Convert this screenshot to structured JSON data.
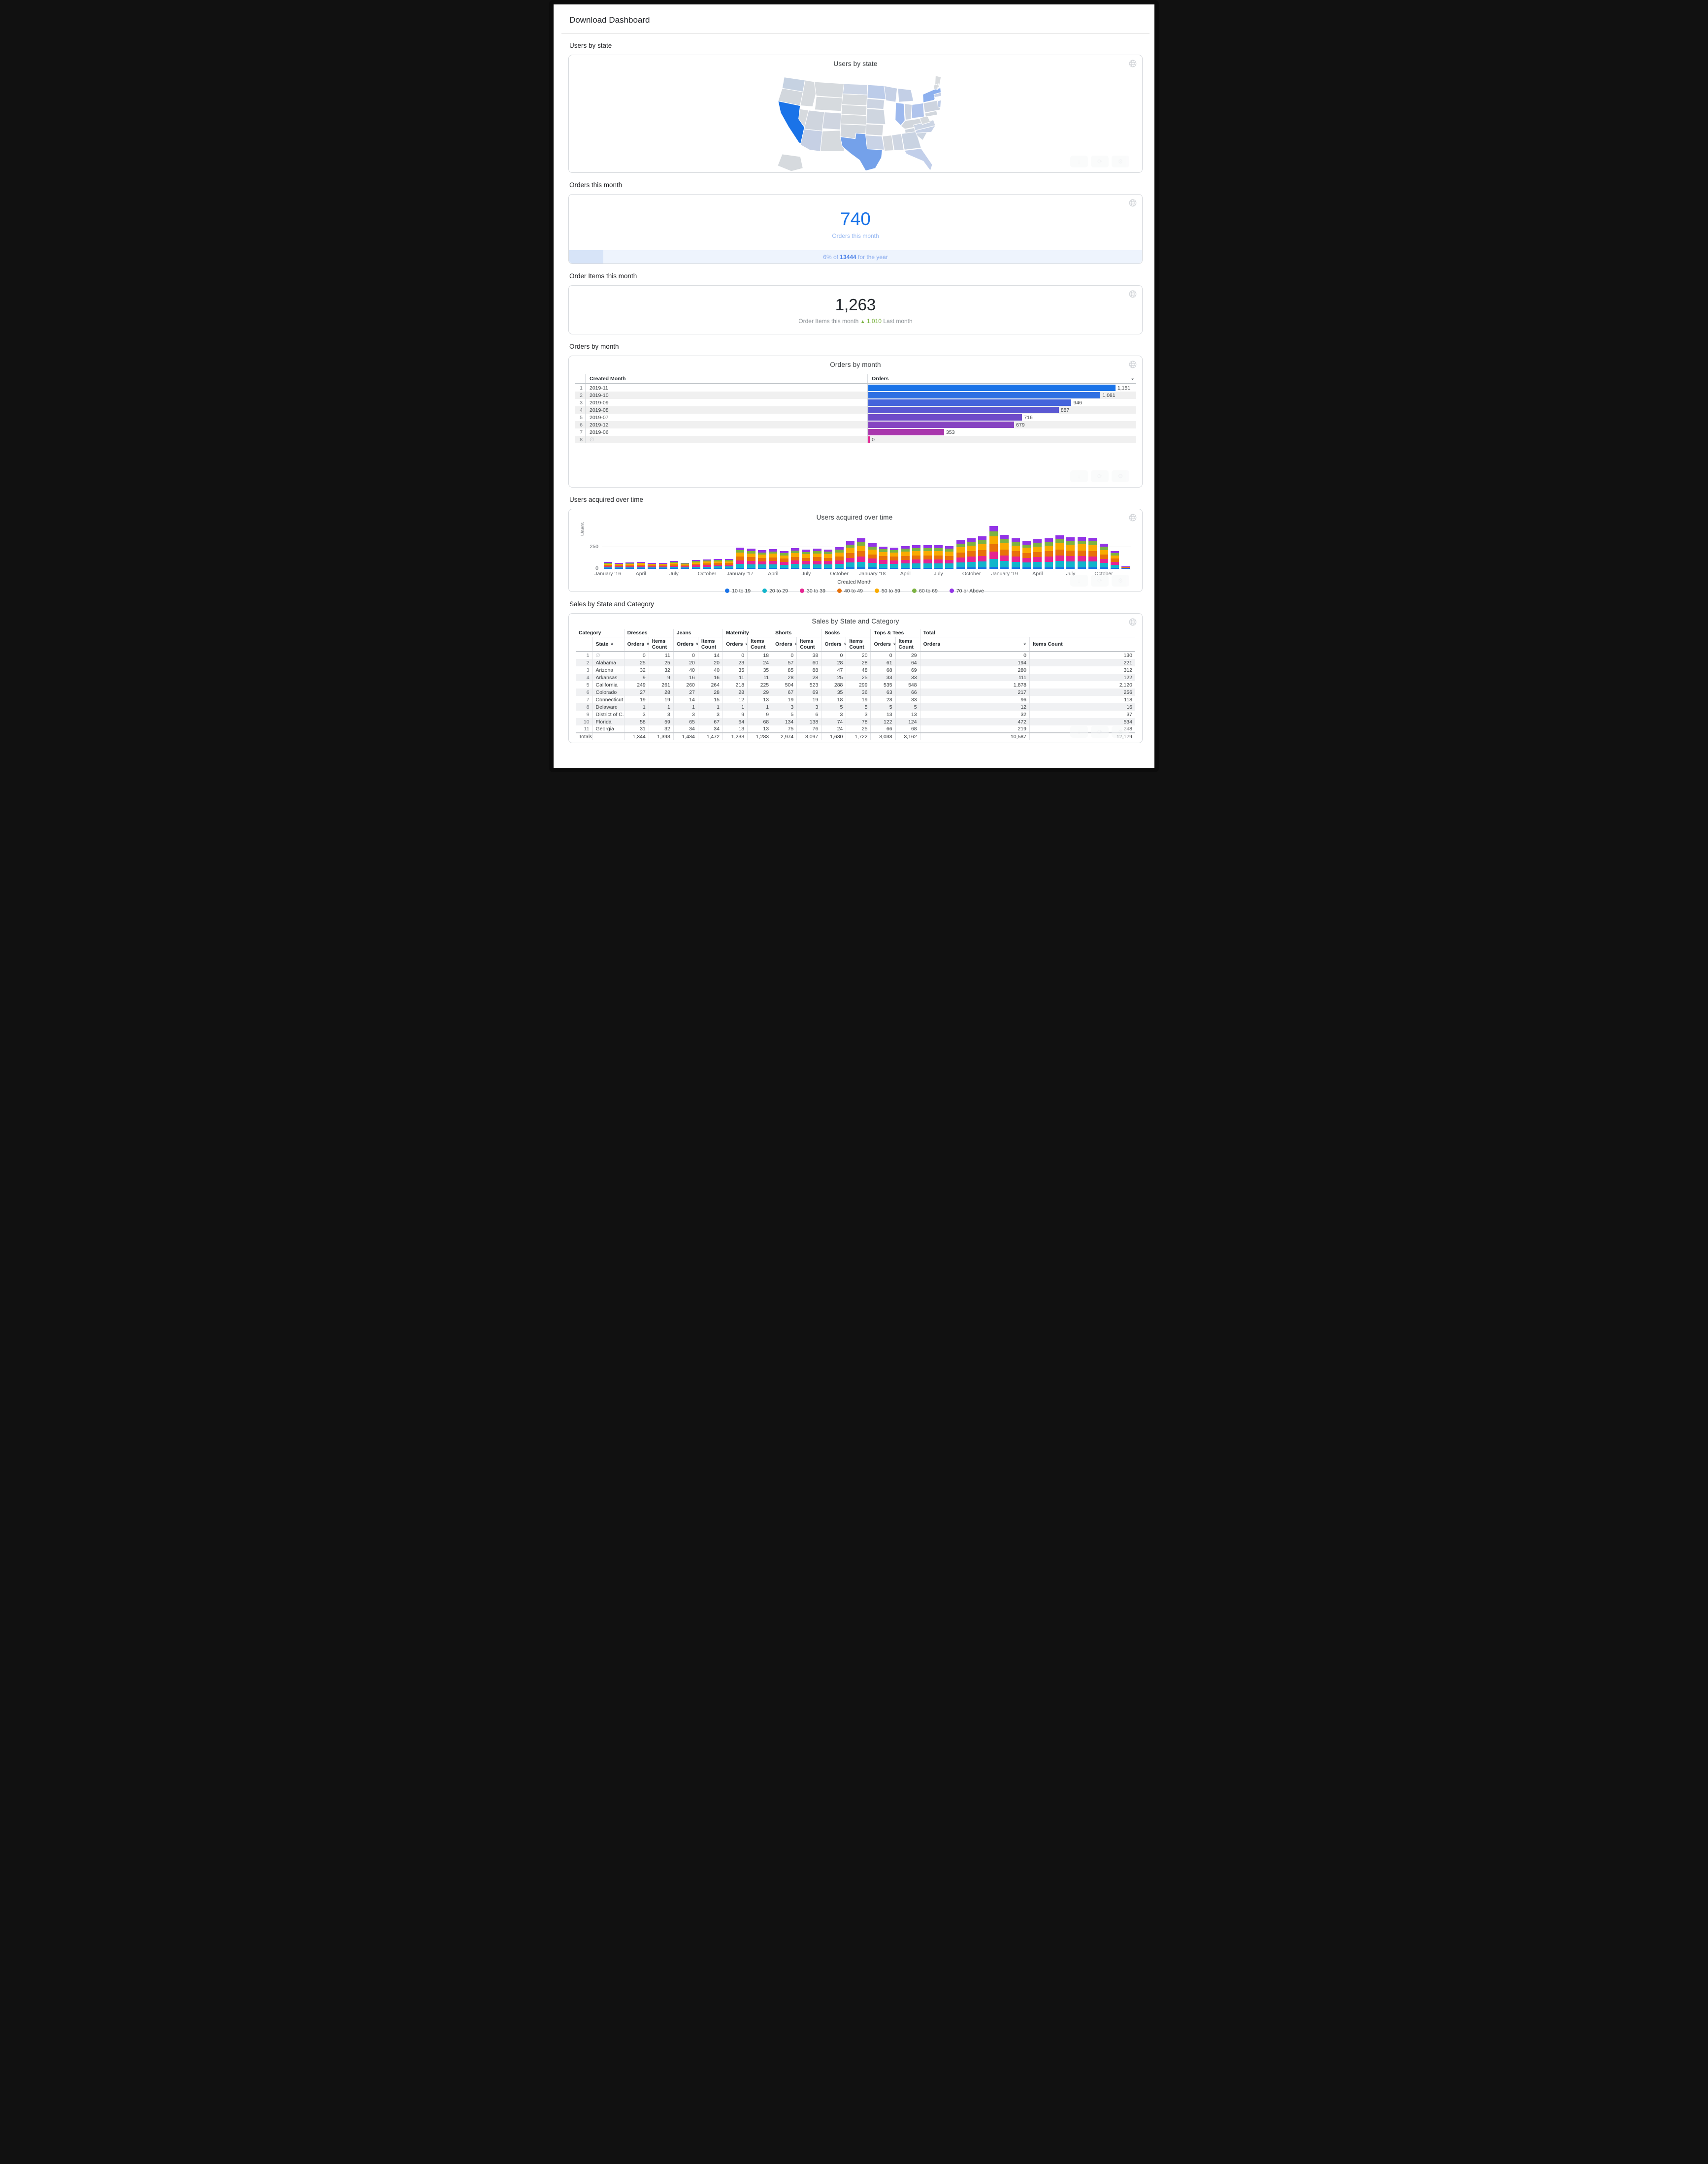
{
  "page": {
    "title": "Download Dashboard"
  },
  "users_by_state": {
    "section_label": "Users by state",
    "card_title": "Users by state",
    "chart_data": {
      "type": "choropleth",
      "title": "Users by state",
      "metric": "Users",
      "legend": "high = dark blue, low = light gray",
      "state_colors": {
        "WA": "#c6d2e2",
        "OR": "#d2d7dd",
        "CA": "#1a73e8",
        "NV": "#d6dade",
        "ID": "#d6dade",
        "MT": "#d6dade",
        "WY": "#d6dade",
        "UT": "#cfd5de",
        "AZ": "#c6d0e4",
        "CO": "#cfd5e0",
        "NM": "#d6dade",
        "ND": "#cdd6e6",
        "SD": "#d6dade",
        "NE": "#d6dade",
        "KS": "#d6dade",
        "OK": "#d2d7dd",
        "TX": "#74a1ea",
        "MN": "#bccce9",
        "IA": "#ccd4e2",
        "MO": "#cfd6e0",
        "AR": "#d4d8de",
        "LA": "#c9d3e6",
        "WI": "#c6d1e6",
        "MI": "#c3cfe6",
        "IL": "#9db9ee",
        "IN": "#ccd4e2",
        "OH": "#b0c4ec",
        "KY": "#d2d7dd",
        "TN": "#cdd4de",
        "MS": "#d4d8de",
        "AL": "#cfd6e2",
        "GA": "#c9d3e2",
        "FL": "#c2cfea",
        "SC": "#ccd5e2",
        "NC": "#c6d1e6",
        "VA": "#ccd5e4",
        "WV": "#d6dade",
        "PA": "#cdd4e0",
        "NY": "#8db0ee",
        "NJ": "#bfcde8",
        "MD": "#d2d7dd",
        "ME": "#d9dcdf",
        "VT": "#d6dade",
        "MA": "#c6d1e8",
        "AK": "#d6dade"
      },
      "default_color": "#d7dade"
    }
  },
  "orders_this_month": {
    "section_label": "Orders this month",
    "value": "740",
    "label": "Orders this month",
    "progress_prefix": "6% of",
    "progress_total": "13444",
    "progress_suffix": "for the year",
    "percent": 6
  },
  "order_items_this_month": {
    "section_label": "Order Items this month",
    "value": "1,263",
    "label": "Order Items this month",
    "delta_arrow": "▲",
    "delta_value": "1,010",
    "delta_label": "Last month"
  },
  "orders_by_month": {
    "section_label": "Orders by month",
    "card_title": "Orders by month",
    "columns": {
      "month": "Created Month",
      "orders": "Orders"
    },
    "chart_data": {
      "type": "bar",
      "max_scale": 1250,
      "rows": [
        {
          "rank": "1",
          "created_month": "2019-11",
          "orders": 1151,
          "orders_label": "1,151",
          "color": "#1a73e8"
        },
        {
          "rank": "2",
          "created_month": "2019-10",
          "orders": 1081,
          "orders_label": "1,081",
          "color": "#2e6fe2"
        },
        {
          "rank": "3",
          "created_month": "2019-09",
          "orders": 946,
          "orders_label": "946",
          "color": "#4464db"
        },
        {
          "rank": "4",
          "created_month": "2019-08",
          "orders": 887,
          "orders_label": "887",
          "color": "#5b58d2"
        },
        {
          "rank": "5",
          "created_month": "2019-07",
          "orders": 716,
          "orders_label": "716",
          "color": "#6f4cc9"
        },
        {
          "rank": "6",
          "created_month": "2019-12",
          "orders": 679,
          "orders_label": "679",
          "color": "#8643c1"
        },
        {
          "rank": "7",
          "created_month": "2019-06",
          "orders": 353,
          "orders_label": "353",
          "color": "#a936ad"
        },
        {
          "rank": "8",
          "created_month": "∅",
          "orders": 0,
          "orders_label": "0",
          "color": "#e52592"
        }
      ]
    }
  },
  "users_acquired": {
    "section_label": "Users acquired over time",
    "card_title": "Users acquired over time",
    "ylabel": "Users",
    "xlabel": "Created Month",
    "ytick_250": "250",
    "ytick_0": "0",
    "chart_data": {
      "type": "stacked-bar",
      "ylim": [
        0,
        530
      ],
      "yticks": [
        0,
        250
      ],
      "tick_every": 3,
      "tick_labels": [
        "January '16",
        "April",
        "July",
        "October",
        "January '17",
        "April",
        "July",
        "October",
        "January '18",
        "April",
        "July",
        "October",
        "January '19",
        "April",
        "July",
        "October"
      ],
      "totals": [
        75,
        65,
        70,
        78,
        65,
        65,
        88,
        68,
        98,
        108,
        112,
        112,
        238,
        228,
        210,
        222,
        200,
        232,
        215,
        228,
        218,
        242,
        310,
        345,
        285,
        250,
        240,
        255,
        265,
        265,
        265,
        255,
        320,
        345,
        365,
        480,
        380,
        345,
        310,
        330,
        345,
        375,
        355,
        360,
        350,
        280,
        200,
        25
      ],
      "age_groups": [
        {
          "name": "10 to 19",
          "color": "#1a73e8",
          "fraction": 0.05
        },
        {
          "name": "20 to 29",
          "color": "#12b5cb",
          "fraction": 0.18
        },
        {
          "name": "30 to 39",
          "color": "#e52592",
          "fraction": 0.17
        },
        {
          "name": "40 to 49",
          "color": "#e8710a",
          "fraction": 0.17
        },
        {
          "name": "50 to 59",
          "color": "#f9ab00",
          "fraction": 0.19
        },
        {
          "name": "60 to 69",
          "color": "#7cb342",
          "fraction": 0.12
        },
        {
          "name": "70 or Above",
          "color": "#9334e6",
          "fraction": 0.12
        }
      ]
    }
  },
  "sales": {
    "section_label": "Sales by State and Category",
    "card_title": "Sales by State and Category",
    "groups": [
      "Category",
      "Dresses",
      "Jeans",
      "Maternity",
      "Shorts",
      "Socks",
      "Tops & Tees",
      "Total"
    ],
    "subheader": {
      "state": "State",
      "orders": "Orders",
      "items": "Items Count"
    },
    "chart_data": {
      "type": "table",
      "rows": [
        {
          "n": "1",
          "state": "∅",
          "values": [
            "0",
            "11",
            "0",
            "14",
            "0",
            "18",
            "0",
            "38",
            "0",
            "20",
            "0",
            "29",
            "0",
            "130"
          ]
        },
        {
          "n": "2",
          "state": "Alabama",
          "values": [
            "25",
            "25",
            "20",
            "20",
            "23",
            "24",
            "57",
            "60",
            "28",
            "28",
            "61",
            "64",
            "194",
            "221"
          ]
        },
        {
          "n": "3",
          "state": "Arizona",
          "values": [
            "32",
            "32",
            "40",
            "40",
            "35",
            "35",
            "85",
            "88",
            "47",
            "48",
            "68",
            "69",
            "280",
            "312"
          ]
        },
        {
          "n": "4",
          "state": "Arkansas",
          "values": [
            "9",
            "9",
            "16",
            "16",
            "11",
            "11",
            "28",
            "28",
            "25",
            "25",
            "33",
            "33",
            "111",
            "122"
          ]
        },
        {
          "n": "5",
          "state": "California",
          "values": [
            "249",
            "261",
            "260",
            "264",
            "218",
            "225",
            "504",
            "523",
            "288",
            "299",
            "535",
            "548",
            "1,878",
            "2,120"
          ]
        },
        {
          "n": "6",
          "state": "Colorado",
          "values": [
            "27",
            "28",
            "27",
            "28",
            "28",
            "29",
            "67",
            "69",
            "35",
            "36",
            "63",
            "66",
            "217",
            "256"
          ]
        },
        {
          "n": "7",
          "state": "Connecticut",
          "values": [
            "19",
            "19",
            "14",
            "15",
            "12",
            "13",
            "19",
            "19",
            "18",
            "19",
            "28",
            "33",
            "96",
            "118"
          ]
        },
        {
          "n": "8",
          "state": "Delaware",
          "values": [
            "1",
            "1",
            "1",
            "1",
            "1",
            "1",
            "3",
            "3",
            "5",
            "5",
            "5",
            "5",
            "12",
            "16"
          ]
        },
        {
          "n": "9",
          "state": "District of C...",
          "values": [
            "3",
            "3",
            "3",
            "3",
            "9",
            "9",
            "5",
            "6",
            "3",
            "3",
            "13",
            "13",
            "32",
            "37"
          ]
        },
        {
          "n": "10",
          "state": "Florida",
          "values": [
            "58",
            "59",
            "65",
            "67",
            "64",
            "68",
            "134",
            "138",
            "74",
            "78",
            "122",
            "124",
            "472",
            "534"
          ]
        },
        {
          "n": "11",
          "state": "Georgia",
          "values": [
            "31",
            "32",
            "34",
            "34",
            "13",
            "13",
            "75",
            "76",
            "24",
            "25",
            "66",
            "68",
            "219",
            "248"
          ]
        }
      ],
      "totals": {
        "label": "Totals",
        "values": [
          "1,344",
          "1,393",
          "1,434",
          "1,472",
          "1,233",
          "1,283",
          "2,974",
          "3,097",
          "1,630",
          "1,722",
          "3,038",
          "3,162",
          "10,587",
          "12,129"
        ]
      }
    }
  }
}
